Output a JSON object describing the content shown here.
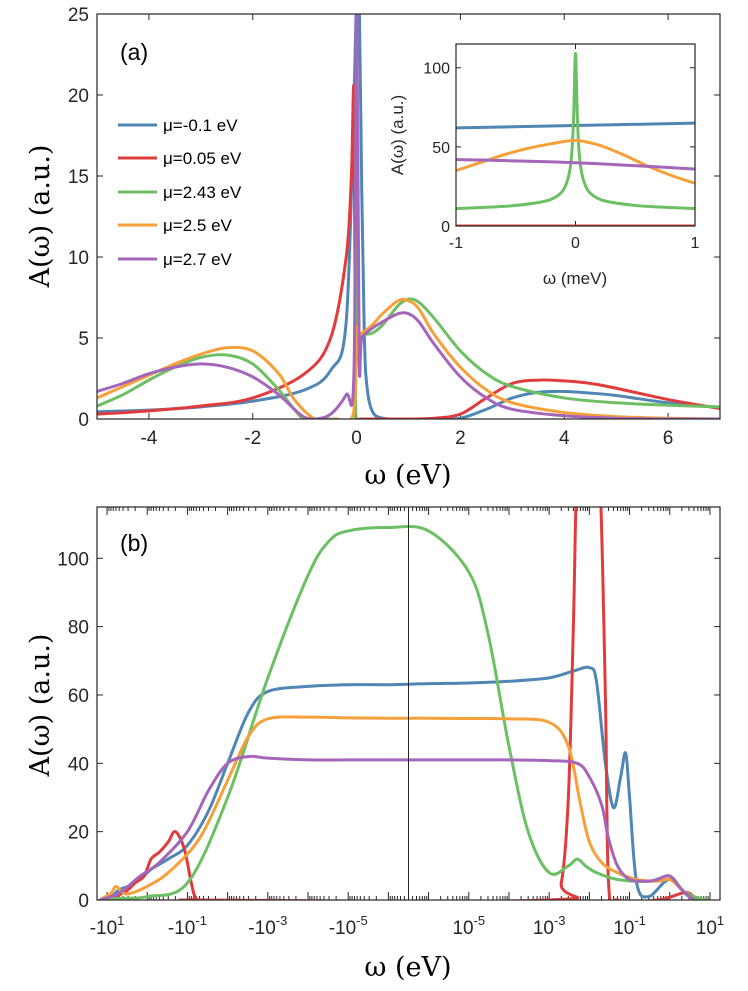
{
  "colors": {
    "blue": "#4f86b6",
    "red": "#e03c3c",
    "green": "#6cbf63",
    "orange": "#f7a03a",
    "purple": "#a465ba"
  },
  "chart_data": [
    {
      "id": "a",
      "type": "line",
      "panel_label": "(a)",
      "xlabel": "ω (eV)",
      "ylabel": "A(ω) (a.u.)",
      "xlim": [
        -5,
        7
      ],
      "ylim": [
        0,
        25
      ],
      "xticks": [
        -4,
        -2,
        0,
        2,
        4,
        6
      ],
      "xtick_labels": [
        "-4",
        "-2",
        "0",
        "2",
        "4",
        "6"
      ],
      "yticks": [
        0,
        5,
        10,
        15,
        20,
        25
      ],
      "ytick_labels": [
        "0",
        "5",
        "10",
        "15",
        "20",
        "25"
      ],
      "legend_position": "upper-left",
      "series": [
        {
          "name": "μ=-0.1 eV",
          "color": "blue",
          "x": [
            -5,
            -4,
            -3,
            -2,
            -1,
            -0.5,
            -0.2,
            -0.05,
            0.0,
            0.05,
            0.1,
            0.15,
            0.2,
            0.3,
            0.5,
            1.0,
            1.5,
            2.0,
            2.5,
            3.0,
            3.5,
            4.0,
            4.5,
            5.0,
            6.0,
            7.0
          ],
          "y": [
            0.45,
            0.55,
            0.75,
            1.1,
            1.8,
            3.0,
            6.0,
            20.0,
            26.0,
            26.0,
            14.0,
            5.0,
            2.0,
            0.5,
            0.05,
            0.0,
            0.0,
            0.05,
            0.6,
            1.3,
            1.65,
            1.7,
            1.6,
            1.45,
            1.0,
            0.7
          ]
        },
        {
          "name": "μ=0.05 eV",
          "color": "red",
          "x": [
            -5,
            -4,
            -3,
            -2,
            -1,
            -0.5,
            -0.2,
            -0.1,
            -0.05,
            -0.02,
            0.02,
            0.1,
            0.5,
            1.0,
            1.5,
            2.0,
            2.5,
            3.0,
            3.5,
            4.0,
            4.5,
            5.0,
            6.0,
            7.0
          ],
          "y": [
            0.3,
            0.5,
            0.8,
            1.3,
            2.8,
            5.0,
            10.0,
            15.0,
            20.0,
            0.5,
            0.0,
            0.0,
            0.0,
            0.0,
            0.05,
            0.3,
            1.3,
            2.2,
            2.4,
            2.35,
            2.2,
            1.9,
            1.2,
            0.65
          ]
        },
        {
          "name": "μ=2.43 eV",
          "color": "green",
          "x": [
            -5,
            -4.5,
            -4,
            -3.5,
            -3,
            -2.5,
            -2,
            -1.5,
            -1.2,
            -1.0,
            -0.5,
            -0.1,
            -0.02,
            0.0,
            0.02,
            0.1,
            0.3,
            0.5,
            0.8,
            1.0,
            1.2,
            1.5,
            2.0,
            2.5,
            3.0,
            4.0,
            5.0,
            6.0,
            7.0
          ],
          "y": [
            0.8,
            1.5,
            2.4,
            3.2,
            3.8,
            3.95,
            3.4,
            1.8,
            0.6,
            0.05,
            0.0,
            0.0,
            1.0,
            26.0,
            5.0,
            5.2,
            5.3,
            5.8,
            7.0,
            7.4,
            7.2,
            6.2,
            4.2,
            2.8,
            2.0,
            1.3,
            1.0,
            0.85,
            0.75
          ]
        },
        {
          "name": "μ=2.5 eV",
          "color": "orange",
          "x": [
            -5,
            -4.5,
            -4,
            -3.5,
            -3,
            -2.5,
            -2,
            -1.5,
            -1.2,
            -0.8,
            -0.4,
            -0.1,
            -0.02,
            0.0,
            0.02,
            0.1,
            0.3,
            0.5,
            0.8,
            1.0,
            1.2,
            1.5,
            2.0,
            2.5,
            3.0,
            4.0,
            5.0,
            6.0,
            7.0
          ],
          "y": [
            1.3,
            2.0,
            2.7,
            3.4,
            4.0,
            4.4,
            4.2,
            2.8,
            1.2,
            0.0,
            0.0,
            0.0,
            2.0,
            5.5,
            5.2,
            5.3,
            5.8,
            6.5,
            7.3,
            7.3,
            6.8,
            5.2,
            3.2,
            1.8,
            1.0,
            0.4,
            0.15,
            0.05,
            0.0
          ]
        },
        {
          "name": "μ=2.7 eV",
          "color": "purple",
          "x": [
            -5,
            -4.5,
            -4,
            -3.5,
            -3,
            -2.5,
            -2,
            -1.5,
            -1.2,
            -1.0,
            -0.8,
            -0.5,
            -0.2,
            -0.05,
            0.0,
            0.05,
            0.1,
            0.3,
            0.5,
            0.8,
            1.0,
            1.2,
            1.5,
            2.0,
            2.5,
            3.0,
            4.0,
            5.0,
            6.0,
            7.0
          ],
          "y": [
            1.7,
            2.2,
            2.8,
            3.2,
            3.4,
            3.2,
            2.6,
            1.5,
            0.6,
            0.1,
            0.0,
            0.3,
            1.5,
            3.0,
            26.0,
            4.0,
            5.0,
            5.6,
            6.0,
            6.5,
            6.5,
            6.0,
            4.6,
            2.6,
            1.3,
            0.6,
            0.2,
            0.05,
            0.0,
            0.0
          ]
        }
      ]
    },
    {
      "id": "inset",
      "type": "line",
      "xlabel": "ω (meV)",
      "ylabel": "A(ω) (a.u.)",
      "xlim": [
        -1,
        1
      ],
      "ylim": [
        0,
        115
      ],
      "xticks": [
        -1,
        0,
        1
      ],
      "xtick_labels": [
        "-1",
        "0",
        "1"
      ],
      "yticks": [
        0,
        50,
        100
      ],
      "ytick_labels": [
        "0",
        "50",
        "100"
      ],
      "series": [
        {
          "name": "μ=-0.1 eV",
          "color": "blue",
          "x": [
            -1,
            0,
            1
          ],
          "y": [
            62,
            63.5,
            65
          ]
        },
        {
          "name": "μ=0.05 eV",
          "color": "red",
          "x": [
            -1,
            1
          ],
          "y": [
            0,
            0
          ]
        },
        {
          "name": "μ=2.43 eV",
          "color": "green",
          "x": [
            -1,
            -0.7,
            -0.5,
            -0.3,
            -0.2,
            -0.12,
            -0.08,
            -0.05,
            -0.03,
            -0.015,
            0,
            0.015,
            0.03,
            0.05,
            0.08,
            0.12,
            0.2,
            0.3,
            0.5,
            0.7,
            1
          ],
          "y": [
            11,
            12,
            13,
            15,
            17,
            21,
            26,
            34,
            47,
            70,
            109,
            70,
            47,
            34,
            26,
            21,
            17,
            15,
            13,
            12,
            11
          ]
        },
        {
          "name": "μ=2.5 eV",
          "color": "orange",
          "x": [
            -1,
            -0.8,
            -0.6,
            -0.4,
            -0.2,
            0,
            0.2,
            0.4,
            0.6,
            0.8,
            1
          ],
          "y": [
            35,
            40,
            45,
            49,
            52,
            54,
            51,
            45,
            38,
            32,
            27
          ]
        },
        {
          "name": "μ=2.7 eV",
          "color": "purple",
          "x": [
            -1,
            0,
            1
          ],
          "y": [
            42,
            40,
            36
          ]
        }
      ]
    },
    {
      "id": "b",
      "type": "line",
      "panel_label": "(b)",
      "xlabel": "ω (eV)",
      "ylabel": "A(ω) (a.u.)",
      "xscale": "symlog",
      "xlim": [
        -10,
        10
      ],
      "ylim": [
        0,
        115
      ],
      "yticks": [
        0,
        20,
        40,
        60,
        80,
        100
      ],
      "ytick_labels": [
        "0",
        "20",
        "40",
        "60",
        "80",
        "100"
      ],
      "xtick_labels": [
        {
          "base": "-10",
          "exp": "1"
        },
        {
          "base": "-10",
          "exp": "-1"
        },
        {
          "base": "-10",
          "exp": "-3"
        },
        {
          "base": "-10",
          "exp": "-5"
        },
        {
          "base": "10",
          "exp": "-5"
        },
        {
          "base": "10",
          "exp": "-3"
        },
        {
          "base": "10",
          "exp": "-1"
        },
        {
          "base": "10",
          "exp": "1"
        }
      ],
      "series": [
        {
          "name": "μ=-0.1 eV",
          "color": "blue",
          "x": [
            -15,
            -8,
            -5,
            -3,
            -1.5,
            -0.8,
            -0.3,
            -0.1,
            -0.03,
            -0.01,
            -0.003,
            -0.001,
            -0.0001,
            -1e-05,
            -1e-06,
            1e-06,
            1e-05,
            0.0001,
            0.001,
            0.004,
            0.01,
            0.015,
            0.025,
            0.04,
            0.06,
            0.08,
            0.1,
            0.15,
            0.3,
            1,
            3,
            8
          ],
          "y": [
            0,
            1,
            3,
            4,
            6,
            9,
            12,
            16,
            26,
            40,
            55,
            61,
            62.5,
            63,
            63,
            63.3,
            63.5,
            64,
            65,
            67,
            68,
            64,
            40,
            27,
            36,
            43,
            30,
            5,
            1,
            6,
            1,
            0
          ]
        },
        {
          "name": "μ=0.05 eV",
          "color": "red",
          "x": [
            -15,
            -8,
            -5,
            -3,
            -2,
            -1.2,
            -0.8,
            -0.5,
            -0.3,
            -0.2,
            -0.12,
            -0.08,
            -0.06,
            -0.03,
            0.001,
            0.002,
            0.003,
            0.004,
            0.005,
            0.008,
            0.012,
            0.018,
            0.025,
            0.03,
            0.05,
            0.5,
            2,
            3,
            5
          ],
          "y": [
            0,
            0.5,
            1.5,
            3,
            5,
            7,
            12,
            14,
            17,
            20,
            15,
            5,
            0.5,
            0,
            0,
            5,
            30,
            80,
            125,
            125,
            125,
            125,
            60,
            5,
            0,
            0,
            2,
            2,
            0
          ]
        },
        {
          "name": "μ=2.43 eV",
          "color": "green",
          "x": [
            -15,
            -8,
            -4,
            -1,
            -0.1,
            -0.01,
            -0.001,
            -0.0001,
            -3e-05,
            -1e-05,
            -1e-06,
            1e-06,
            1e-05,
            3e-05,
            0.0001,
            0.0003,
            0.001,
            0.003,
            0.005,
            0.008,
            0.015,
            0.05,
            0.3,
            1,
            2,
            4,
            8
          ],
          "y": [
            0,
            0.3,
            0.5,
            1,
            5,
            30,
            65,
            95,
            105,
            108,
            109,
            108,
            96,
            78,
            45,
            20,
            8,
            10,
            12,
            10,
            8,
            6,
            5.5,
            7,
            3,
            1,
            0
          ]
        },
        {
          "name": "μ=2.5 eV",
          "color": "orange",
          "x": [
            -15,
            -8,
            -6,
            -4,
            -2.5,
            -1,
            -0.3,
            -0.05,
            -0.01,
            -0.003,
            -0.001,
            -0.0001,
            -1e-05,
            -1e-06,
            1e-06,
            1e-05,
            0.0001,
            0.001,
            0.003,
            0.006,
            0.01,
            0.02,
            0.05,
            0.15,
            0.5,
            1,
            2,
            4
          ],
          "y": [
            0,
            2,
            4,
            2,
            2,
            4,
            8,
            18,
            35,
            48,
            53,
            53.5,
            53.3,
            53.2,
            53.2,
            53.1,
            53,
            52,
            45,
            28,
            17,
            11,
            8,
            6,
            5.5,
            6,
            3,
            0
          ]
        },
        {
          "name": "μ=2.7 eV",
          "color": "purple",
          "x": [
            -15,
            -8,
            -5,
            -3,
            -1.5,
            -0.5,
            -0.1,
            -0.03,
            -0.01,
            -0.003,
            -0.001,
            -0.0001,
            -1e-05,
            -1e-06,
            1e-06,
            1e-05,
            0.0001,
            0.001,
            0.005,
            0.01,
            0.02,
            0.03,
            0.05,
            0.1,
            0.3,
            0.5,
            1,
            2,
            4
          ],
          "y": [
            0,
            1,
            2,
            4,
            7,
            11,
            20,
            32,
            40,
            42,
            41.5,
            41,
            41,
            41,
            41,
            41,
            41,
            40.8,
            40,
            36,
            28,
            18,
            10,
            6,
            5.5,
            6,
            7,
            3,
            0
          ]
        }
      ]
    }
  ]
}
